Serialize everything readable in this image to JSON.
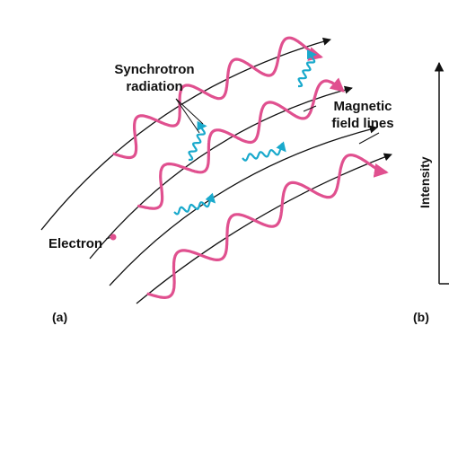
{
  "labels": {
    "synchrotron_line1": "Synchrotron",
    "synchrotron_line2": "radiation",
    "magnetic_line1": "Magnetic",
    "magnetic_line2": "field lines",
    "electron": "Electron",
    "intensity": "Intensity",
    "panel_a": "(a)",
    "panel_b": "(b)"
  },
  "colors": {
    "electron_path": "#e0508f",
    "radiation": "#19a9cc",
    "field_lines": "#111111",
    "text": "#111111",
    "background": "#ffffff"
  }
}
